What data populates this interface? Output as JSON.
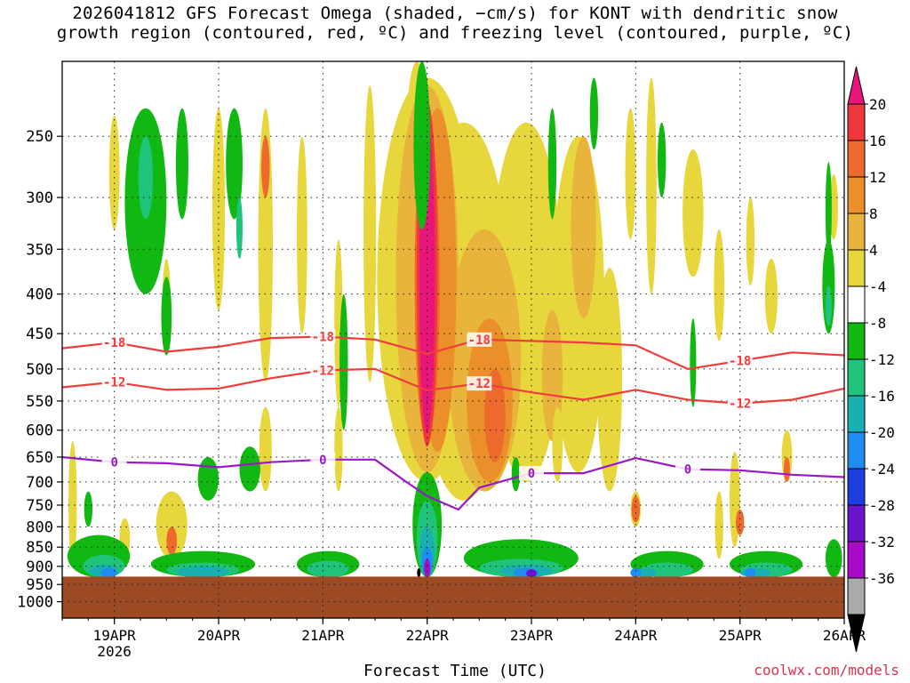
{
  "chart_data": {
    "type": "heatmap",
    "title_line1": "2026041812 GFS Forecast Omega (shaded, −cm/s) for KONT with dendritic snow",
    "title_line2": "growth region (contoured, red, ºC) and freezing level (contoured, purple, ºC)",
    "xlabel": "Forecast Time (UTC)",
    "credit": "coolwx.com/models",
    "y_axis": {
      "scale": "pressure-log",
      "range_hPa": [
        1050,
        200
      ],
      "ticks": [
        "250",
        "300",
        "350",
        "400",
        "450",
        "500",
        "550",
        "600",
        "650",
        "700",
        "750",
        "800",
        "850",
        "900",
        "950",
        "1000"
      ]
    },
    "x_axis": {
      "range_days_since_18APR_00Z": [
        0.5,
        8.0
      ],
      "ticks": [
        {
          "day": 1,
          "label": "19APR",
          "sub": "2026"
        },
        {
          "day": 2,
          "label": "20APR",
          "sub": ""
        },
        {
          "day": 3,
          "label": "21APR",
          "sub": ""
        },
        {
          "day": 4,
          "label": "22APR",
          "sub": ""
        },
        {
          "day": 5,
          "label": "23APR",
          "sub": ""
        },
        {
          "day": 6,
          "label": "24APR",
          "sub": ""
        },
        {
          "day": 7,
          "label": "25APR",
          "sub": ""
        },
        {
          "day": 8,
          "label": "26APR",
          "sub": ""
        }
      ]
    },
    "colorbar": {
      "levels": [
        "20",
        "16",
        "12",
        "8",
        "4",
        "-4",
        "-8",
        "-12",
        "-16",
        "-20",
        "-24",
        "-28",
        "-32",
        "-36"
      ],
      "colors": [
        "#e8157a",
        "#f0373c",
        "#ee6a2c",
        "#eb8f2a",
        "#e8b43c",
        "#e7d63c",
        "#ffffff",
        "#12b812",
        "#20c37a",
        "#18b0b0",
        "#1e8cf0",
        "#1c3ee0",
        "#6a14d0",
        "#a80ac8",
        "#aaaaaa",
        "#000000"
      ]
    },
    "shading": [
      {
        "name": "updraft-core",
        "time": 4.0,
        "top_hPa": 215,
        "bottom_hPa": 635,
        "max_omega": 28
      },
      {
        "name": "updraft-flank",
        "time": 4.55,
        "top_hPa": 230,
        "bottom_hPa": 720,
        "max_omega": 13
      },
      {
        "name": "updraft-secondary",
        "time": 3.4,
        "top_hPa": 215,
        "bottom_hPa": 600,
        "max_omega": 6
      },
      {
        "name": "subsidence-low-level",
        "time": 5.0,
        "top_hPa": 845,
        "bottom_hPa": 925,
        "min_omega": -24
      }
    ],
    "contours": [
      {
        "name": "dgz-upper",
        "label": "-18",
        "color": "#f03c3c",
        "x": [
          0.5,
          1.0,
          1.5,
          2.0,
          2.5,
          3.0,
          3.5,
          4.0,
          4.5,
          5.0,
          5.5,
          6.0,
          6.5,
          7.0,
          7.5,
          8.0
        ],
        "y": [
          470,
          462,
          475,
          468,
          456,
          454,
          458,
          478,
          458,
          460,
          462,
          466,
          500,
          488,
          476,
          480
        ]
      },
      {
        "name": "dgz-lower",
        "label": "-12",
        "color": "#f03c3c",
        "x": [
          0.5,
          1.0,
          1.5,
          2.0,
          2.5,
          3.0,
          3.5,
          4.0,
          4.5,
          5.0,
          5.5,
          6.0,
          6.5,
          7.0,
          7.5,
          8.0
        ],
        "y": [
          528,
          520,
          532,
          530,
          514,
          502,
          500,
          533,
          522,
          536,
          548,
          532,
          548,
          554,
          548,
          530
        ]
      },
      {
        "name": "freezing-level",
        "label": "0",
        "color": "#9a18c8",
        "x": [
          0.5,
          1.0,
          1.5,
          2.0,
          2.5,
          3.0,
          3.5,
          3.8,
          4.0,
          4.3,
          4.5,
          5.0,
          5.5,
          6.0,
          6.5,
          7.0,
          7.5,
          8.0
        ],
        "y": [
          650,
          660,
          662,
          670,
          660,
          655,
          655,
          700,
          730,
          760,
          712,
          682,
          682,
          652,
          674,
          676,
          685,
          690
        ]
      }
    ],
    "surface_pressure_hPa": 928
  }
}
